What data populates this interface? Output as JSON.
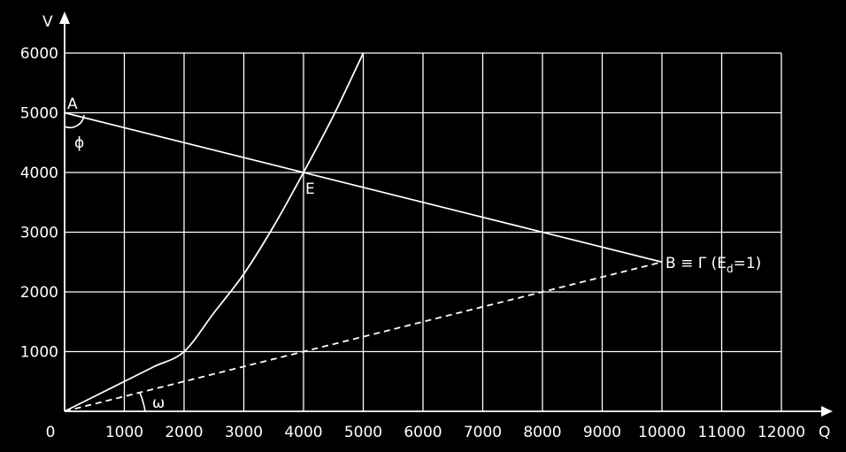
{
  "chart_data": {
    "type": "line",
    "xlabel": "Q",
    "ylabel": "V",
    "xlim": [
      0,
      12000
    ],
    "ylim": [
      0,
      6000
    ],
    "x_ticks": [
      0,
      1000,
      2000,
      3000,
      4000,
      5000,
      6000,
      7000,
      8000,
      9000,
      10000,
      11000,
      12000
    ],
    "x_tick_labels": [
      "0",
      "1000",
      "2000",
      "3000",
      "4000",
      "5000",
      "6000",
      "7000",
      "8000",
      "9000",
      "10000",
      "11000",
      "12000"
    ],
    "y_ticks": [
      1000,
      2000,
      3000,
      4000,
      5000,
      6000
    ],
    "y_tick_labels": [
      "1000",
      "2000",
      "3000",
      "4000",
      "5000",
      "6000"
    ],
    "grid": true,
    "colors": {
      "background": "#000000",
      "foreground": "#ffffff"
    },
    "series": [
      {
        "id": "curve",
        "style": "solid",
        "x": [
          0,
          500,
          1000,
          1500,
          2000,
          2500,
          3000,
          3500,
          4000,
          4500,
          5000
        ],
        "y": [
          0,
          250,
          500,
          750,
          1000,
          1650,
          2300,
          3100,
          4000,
          4950,
          6000
        ]
      },
      {
        "id": "line-AB",
        "style": "solid",
        "x": [
          0,
          10000
        ],
        "y": [
          5000,
          2500
        ]
      },
      {
        "id": "line-OB",
        "style": "dashed",
        "x": [
          0,
          10000
        ],
        "y": [
          0,
          2500
        ]
      }
    ],
    "annotations": [
      {
        "id": "A",
        "text": "A",
        "x": 0,
        "y": 5000
      },
      {
        "id": "E",
        "text": "E",
        "x": 4000,
        "y": 4000
      },
      {
        "id": "B",
        "text": "B ≡ Γ (E",
        "sub": "d",
        "tail": "=1)",
        "x": 10000,
        "y": 2500
      }
    ],
    "angles": [
      {
        "id": "phi",
        "text": "ϕ"
      },
      {
        "id": "omega",
        "text": "ω"
      }
    ]
  }
}
